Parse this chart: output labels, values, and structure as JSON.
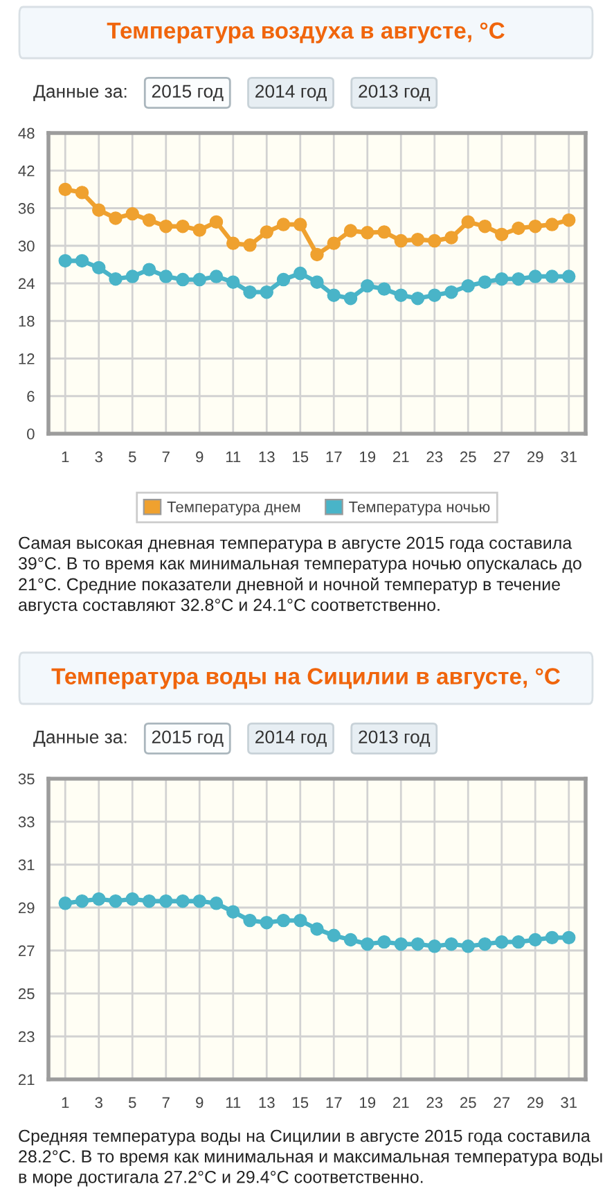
{
  "chart_data": [
    {
      "type": "line",
      "title": "Температура воздуха в августе, °C",
      "x": [
        1,
        2,
        3,
        4,
        5,
        6,
        7,
        8,
        9,
        10,
        11,
        12,
        13,
        14,
        15,
        16,
        17,
        18,
        19,
        20,
        21,
        22,
        23,
        24,
        25,
        26,
        27,
        28,
        29,
        30,
        31
      ],
      "xlim": [
        0,
        32
      ],
      "xticks": [
        1,
        3,
        5,
        7,
        9,
        11,
        13,
        15,
        17,
        19,
        21,
        23,
        25,
        27,
        29,
        31
      ],
      "ylim": [
        0,
        48
      ],
      "yticks": [
        0,
        6,
        12,
        18,
        24,
        30,
        36,
        42,
        48
      ],
      "grid": true,
      "legend": "bottom",
      "marker": "circle",
      "line_style": "solid",
      "series": [
        {
          "name": "Температура днем",
          "color": "#efa12f",
          "values": [
            39.0,
            38.5,
            35.7,
            34.4,
            35.1,
            34.1,
            33.1,
            33.1,
            32.5,
            33.8,
            30.4,
            30.1,
            32.2,
            33.4,
            33.4,
            28.6,
            30.4,
            32.4,
            32.1,
            32.2,
            30.8,
            31.0,
            30.8,
            31.3,
            33.8,
            33.1,
            31.8,
            32.8,
            33.1,
            33.4,
            34.1
          ]
        },
        {
          "name": "Температура ночью",
          "color": "#49b4c8",
          "values": [
            27.6,
            27.6,
            26.5,
            24.7,
            25.1,
            26.2,
            25.1,
            24.6,
            24.6,
            25.1,
            24.2,
            22.6,
            22.6,
            24.6,
            25.6,
            24.2,
            22.1,
            21.6,
            23.6,
            23.1,
            22.1,
            21.6,
            22.1,
            22.6,
            23.6,
            24.2,
            24.7,
            24.7,
            25.1,
            25.1,
            25.1
          ]
        }
      ],
      "annotations": [
        "Данные за:",
        "2015 год",
        "2014 год",
        "2013 год",
        "Самая высокая дневная температура в августе 2015 года составила 39°C. В то время как минимальная температура ночью опускалась до 21°C. Средние показатели дневной и ночной температур в течение августа составляют 32.8°C и 24.1°C соответственно."
      ]
    },
    {
      "type": "line",
      "title": "Температура воды на Сицилии в августе, °C",
      "x": [
        1,
        2,
        3,
        4,
        5,
        6,
        7,
        8,
        9,
        10,
        11,
        12,
        13,
        14,
        15,
        16,
        17,
        18,
        19,
        20,
        21,
        22,
        23,
        24,
        25,
        26,
        27,
        28,
        29,
        30,
        31
      ],
      "xlim": [
        0,
        32
      ],
      "xticks": [
        1,
        3,
        5,
        7,
        9,
        11,
        13,
        15,
        17,
        19,
        21,
        23,
        25,
        27,
        29,
        31
      ],
      "ylim": [
        21,
        35
      ],
      "yticks": [
        21,
        23,
        25,
        27,
        29,
        31,
        33,
        35
      ],
      "grid": true,
      "marker": "circle",
      "line_style": "solid",
      "series": [
        {
          "color": "#49b4c8",
          "values": [
            29.2,
            29.3,
            29.4,
            29.3,
            29.4,
            29.3,
            29.3,
            29.3,
            29.3,
            29.2,
            28.8,
            28.4,
            28.3,
            28.4,
            28.4,
            28.0,
            27.7,
            27.5,
            27.3,
            27.4,
            27.3,
            27.3,
            27.2,
            27.3,
            27.2,
            27.3,
            27.4,
            27.4,
            27.5,
            27.6,
            27.6
          ]
        }
      ],
      "annotations": [
        "Данные за:",
        "2015 год",
        "2014 год",
        "2013 год",
        "Средняя температура воды на Сицилии в августе 2015 года составила 28.2°C. В то время как минимальная и максимальная температура воды в море достигала 27.2°C и 29.4°C соответственно."
      ]
    }
  ]
}
